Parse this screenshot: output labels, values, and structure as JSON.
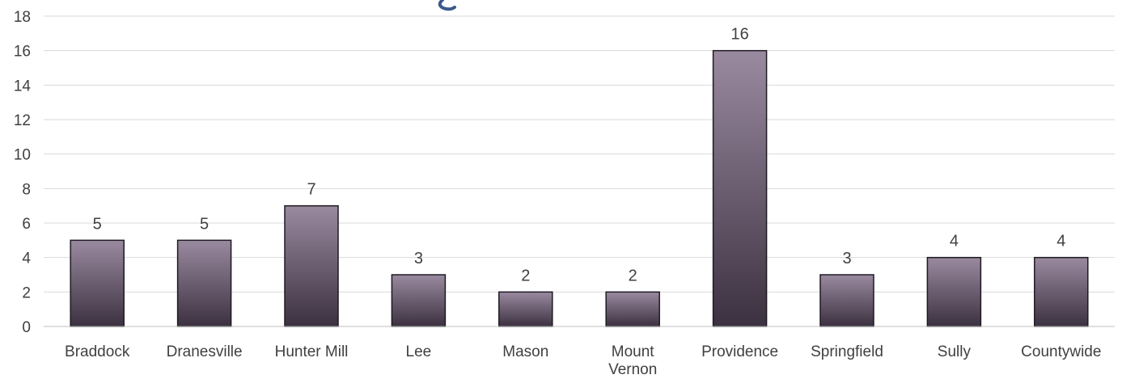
{
  "chart_data": {
    "type": "bar",
    "categories": [
      "Braddock",
      "Dranesville",
      "Hunter Mill",
      "Lee",
      "Mason",
      "Mount Vernon",
      "Providence",
      "Springfield",
      "Sully",
      "Countywide"
    ],
    "category_lines": [
      [
        "Braddock"
      ],
      [
        "Dranesville"
      ],
      [
        "Hunter Mill"
      ],
      [
        "Lee"
      ],
      [
        "Mason"
      ],
      [
        "Mount",
        "Vernon"
      ],
      [
        "Providence"
      ],
      [
        "Springfield"
      ],
      [
        "Sully"
      ],
      [
        "Countywide"
      ]
    ],
    "values": [
      5,
      5,
      7,
      3,
      2,
      2,
      16,
      3,
      4,
      4
    ],
    "ylim": [
      0,
      18
    ],
    "yticks": [
      0,
      2,
      4,
      6,
      8,
      10,
      12,
      14,
      16,
      18
    ],
    "data_labels": true,
    "grid": "horizontal",
    "legend": "none",
    "colors": {
      "bar_top": "#9a8aa0",
      "bar_bottom": "#3c3140",
      "bar_border": "#1e1a22",
      "grid": "#d9d9d9",
      "text": "#404040",
      "logo": "#3a5a8c"
    }
  }
}
